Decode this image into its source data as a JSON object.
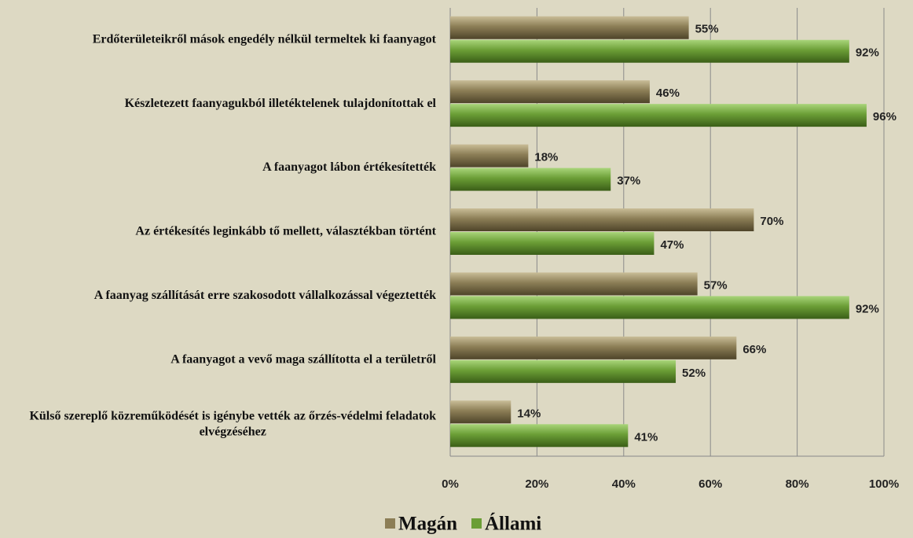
{
  "chart_data": {
    "type": "bar",
    "orientation": "horizontal",
    "categories": [
      "Erdőterületeikről mások engedély nélkül termeltek ki faanyagot",
      "Készletezett faanyagukból illetéktelenek tulajdonítottak el",
      "A faanyagot lábon értékesítették",
      "Az értékesítés leginkább tő mellett, választékban történt",
      "A faanyag szállítását erre szakosodott vállalkozással végeztették",
      "A faanyagot a vevő maga szállította el a területről",
      "Külső szereplő közreműködését is igénybe vették az őrzés-védelmi feladatok elvégzéséhez"
    ],
    "series": [
      {
        "name": "Magán",
        "color": "#8c7e56",
        "values": [
          55,
          46,
          18,
          70,
          57,
          66,
          14
        ],
        "value_labels": [
          "55%",
          "46%",
          "18%",
          "70%",
          "57%",
          "66%",
          "14%"
        ]
      },
      {
        "name": "Állami",
        "color": "#6b9e36",
        "values": [
          92,
          96,
          37,
          47,
          92,
          52,
          41
        ],
        "value_labels": [
          "92%",
          "96%",
          "37%",
          "47%",
          "92%",
          "52%",
          "41%"
        ]
      }
    ],
    "xlim": [
      0,
      100
    ],
    "xticks": [
      {
        "value": 0,
        "label": "0%"
      },
      {
        "value": 20,
        "label": "20%"
      },
      {
        "value": 40,
        "label": "40%"
      },
      {
        "value": 60,
        "label": "60%"
      },
      {
        "value": 80,
        "label": "80%"
      },
      {
        "value": 100,
        "label": "100%"
      }
    ],
    "grid": true,
    "legend": "bottom"
  }
}
